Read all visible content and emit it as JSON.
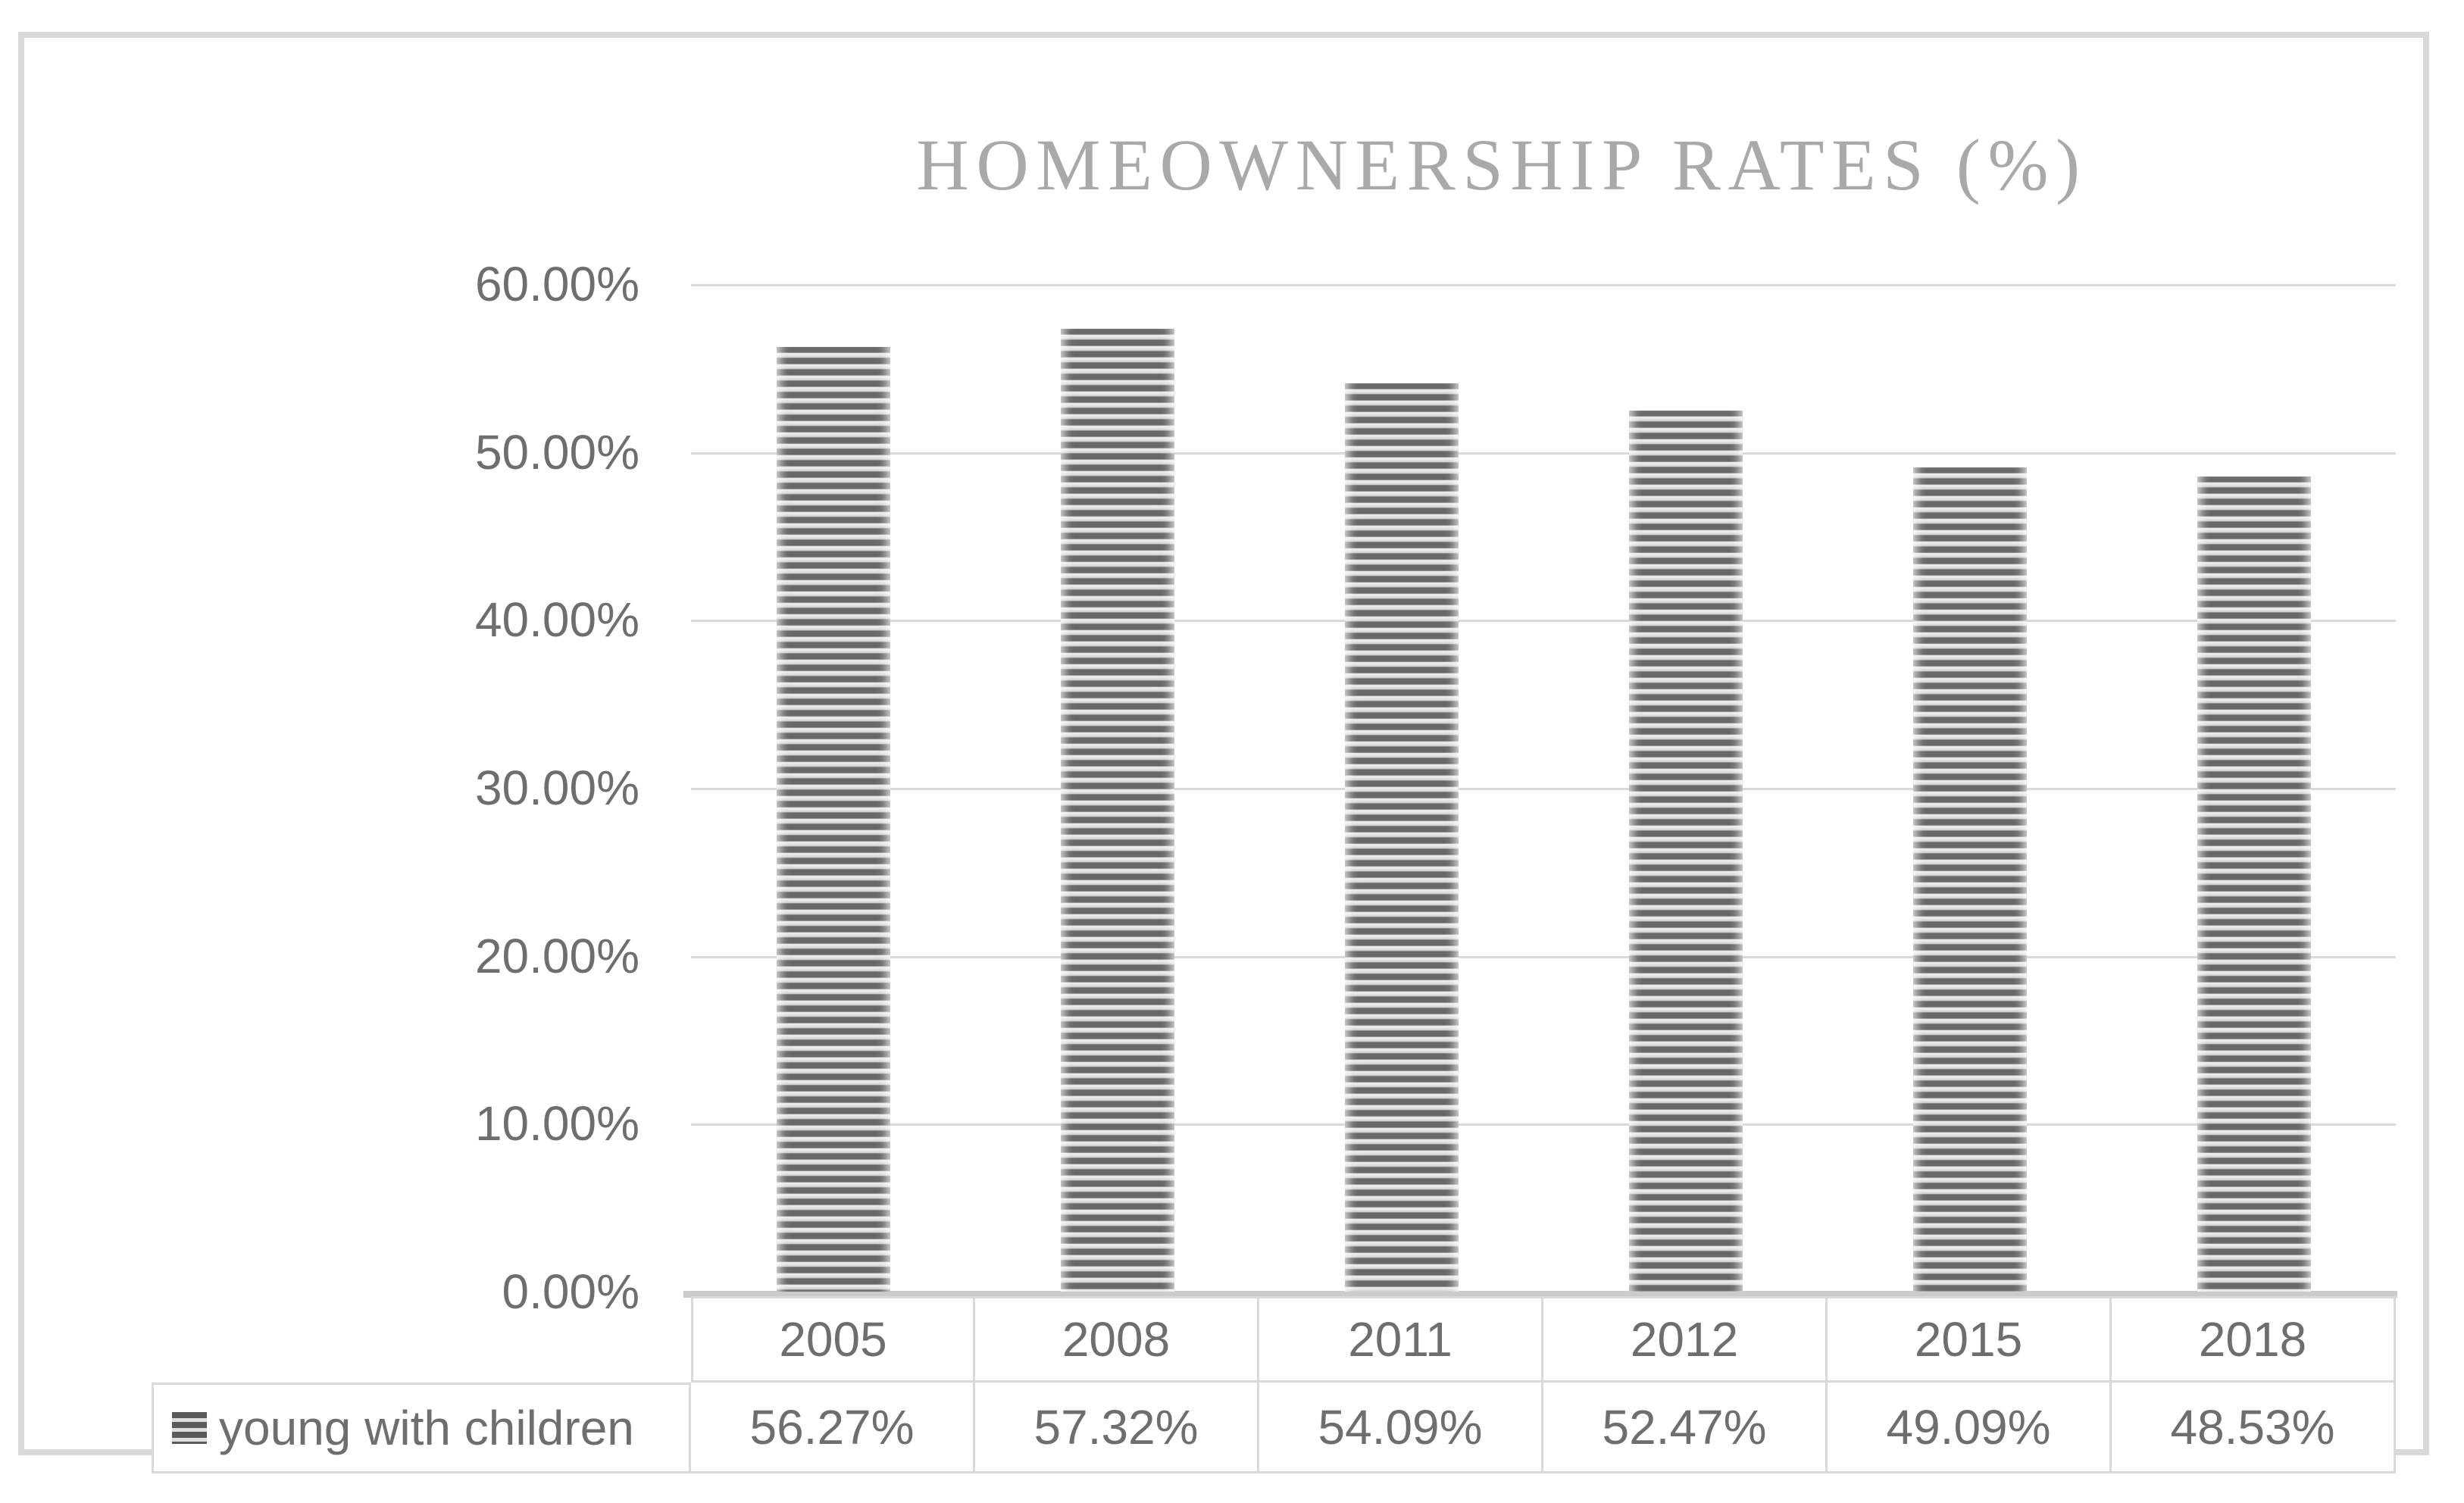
{
  "chart_data": {
    "type": "bar",
    "title": "HOMEOWNERSHIP RATES (%)",
    "categories": [
      "2005",
      "2008",
      "2011",
      "2012",
      "2015",
      "2018"
    ],
    "series": [
      {
        "name": "young with children",
        "values": [
          56.27,
          57.32,
          54.09,
          52.47,
          49.09,
          48.53
        ],
        "value_labels": [
          "56.27%",
          "57.32%",
          "54.09%",
          "52.47%",
          "49.09%",
          "48.53%"
        ]
      }
    ],
    "y_axis": {
      "ticks": [
        "60.00%",
        "50.00%",
        "40.00%",
        "30.00%",
        "20.00%",
        "10.00%",
        "0.00%"
      ],
      "min": 0,
      "max": 60,
      "step": 10
    },
    "grid": true,
    "legend_position": "data-table-left",
    "bar_style": "horizontal-stripe-pattern",
    "colors": {
      "title_text": "#a9a9a9",
      "axis_text": "#6e6e6e",
      "gridline": "#d9d9d9",
      "axis_line": "#cbcbcb",
      "table_border": "#d9d9d9",
      "stripe_dark": "#68686a",
      "stripe_light": "#e9e9e9",
      "frame_border": "#d9d9d9"
    }
  }
}
